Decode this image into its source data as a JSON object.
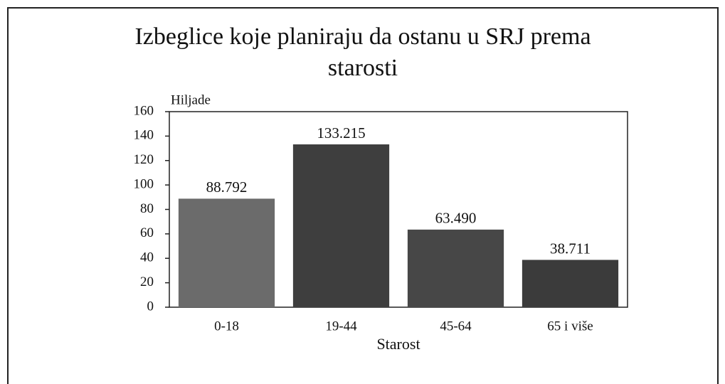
{
  "chart_data": {
    "type": "bar",
    "title": "Izbeglice koje planiraju da ostanu u SRJ prema starosti",
    "y_label": "Hiljade",
    "x_label": "Starost",
    "categories": [
      "0-18",
      "19-44",
      "45-64",
      "65 i više"
    ],
    "values": [
      88.792,
      133.215,
      63.49,
      38.711
    ],
    "value_labels": [
      "88.792",
      "133.215",
      "63.490",
      "38.711"
    ],
    "colors": [
      "#6b6b6b",
      "#3e3e3e",
      "#474747",
      "#3b3b3b"
    ],
    "ylim": [
      0,
      160
    ],
    "yticks": [
      0,
      20,
      40,
      60,
      80,
      100,
      120,
      140,
      160
    ],
    "grid": false
  }
}
